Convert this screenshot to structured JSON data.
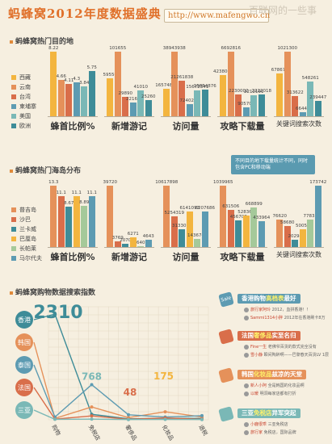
{
  "header": {
    "title": "蚂蜂窝2012年度数据盛典",
    "url": "http://www.mafengwo.cn",
    "watermark": "百联网的一些事"
  },
  "section1": {
    "title": "蚂蜂窝热门目的地",
    "legend": [
      "西藏",
      "云南",
      "台湾",
      "柬埔寨",
      "美国",
      "欧洲"
    ],
    "colors": [
      "#f3b53f",
      "#e5915a",
      "#d96e4a",
      "#5d9bb2",
      "#7ab8b6",
      "#3e8c98"
    ],
    "groups": [
      {
        "label": "蜂首比例%",
        "values": [
          8.22,
          4.66,
          4.11,
          4.3,
          3.84,
          5.75
        ],
        "labels": [
          "8.22",
          "4.66",
          "4.11",
          "4.3",
          "3.84",
          "5.75"
        ]
      },
      {
        "label": "新增游记",
        "values": [
          59550,
          101655,
          29890,
          22160,
          41010,
          25260
        ],
        "labels": [
          "59550",
          "101655",
          "29890",
          "22160",
          "41010",
          "25260"
        ]
      },
      {
        "label": "访问量",
        "values": [
          16574856,
          38943938,
          21261838,
          7240290,
          15672341,
          15854876
        ],
        "labels": [
          "16574856",
          "38943938",
          "21261838",
          "7240290",
          "15672341",
          "15854876"
        ]
      },
      {
        "label": "攻略下载量",
        "values": [
          4238005,
          6692816,
          2230002,
          905702,
          2212191,
          2222018
        ],
        "labels": [
          "4238005",
          "6692816",
          "2230002",
          "905702",
          "2212191",
          "2222018"
        ]
      },
      {
        "label": "关键词搜索次数",
        "values": [
          678670,
          1021300,
          313622,
          66449,
          548261,
          239447
        ],
        "labels": [
          "678670",
          "1021300",
          "313622",
          "66449",
          "548261",
          "239447"
        ],
        "small": true
      }
    ],
    "note": "不同目的地下载量统计不同，同时包含PC和移动端"
  },
  "section2": {
    "title": "蚂蜂窝热门海岛分布",
    "legend": [
      "普吉岛",
      "沙巴",
      "兰卡威",
      "巴厘岛",
      "长帕莱",
      "马尔代夫"
    ],
    "colors": [
      "#e5915a",
      "#d96e4a",
      "#3e8c98",
      "#f3b53f",
      "#a5c99a",
      "#5d9bb2"
    ],
    "groups": [
      {
        "label": "蜂首比例%",
        "values": [
          13.3,
          11.1,
          8.67,
          11.1,
          8.89,
          11.1
        ],
        "labels": [
          "13.3",
          "11.1",
          "8.67",
          "11.1",
          "8.89",
          "11.1"
        ]
      },
      {
        "label": "新增游记",
        "values": [
          39720,
          3769,
          2070,
          6271,
          640,
          4643
        ],
        "labels": [
          "39720",
          "3769",
          "2070",
          "6271",
          "640",
          "4643"
        ]
      },
      {
        "label": "访问量",
        "values": [
          10617898,
          5254319,
          3133071,
          6141093,
          1436748,
          6207686
        ],
        "labels": [
          "10617898",
          "5254319",
          "3133071",
          "6141093",
          "1436748",
          "6207686"
        ]
      },
      {
        "label": "攻略下载量",
        "values": [
          1039965,
          631506,
          456708,
          528361,
          668899,
          433964
        ],
        "labels": [
          "1039965",
          "631506",
          "456708",
          "528361",
          "668899",
          "433964"
        ]
      },
      {
        "label": "关键词搜索次数",
        "values": [
          76620,
          58680,
          20294,
          50058,
          77835,
          173742
        ],
        "labels": [
          "76620",
          "58680",
          "20294",
          "50058",
          "77835",
          "173742"
        ],
        "small": true
      }
    ]
  },
  "section3": {
    "title": "蚂蜂窝购物数据搜索指数",
    "regions": [
      "香港",
      "韩国",
      "泰国",
      "法国",
      "三亚"
    ],
    "region_colors": [
      "#3e8c98",
      "#e5915a",
      "#5d9bb2",
      "#d96e4a",
      "#7ab8b6"
    ],
    "categories": [
      "购物",
      "免税店",
      "奢侈品",
      "化妆品",
      "退税"
    ],
    "annotations": [
      "2310",
      "768",
      "48",
      "175"
    ]
  },
  "chart_data": {
    "type": "line",
    "categories": [
      "购物",
      "免税店",
      "奢侈品",
      "化妆品",
      "退税"
    ],
    "series": [
      {
        "name": "香港",
        "values": [
          2310,
          120,
          20,
          35,
          30
        ]
      },
      {
        "name": "韩国",
        "values": [
          30,
          280,
          48,
          175,
          60
        ]
      },
      {
        "name": "泰国",
        "values": [
          60,
          768,
          110,
          60,
          90
        ]
      },
      {
        "name": "法国",
        "values": [
          15,
          85,
          10,
          40,
          10
        ]
      },
      {
        "name": "三亚",
        "values": [
          10,
          15,
          5,
          8,
          5
        ]
      }
    ]
  },
  "sidebar": [
    {
      "tag": "Sale",
      "title_a": "香港购物",
      "title_b": "高档表",
      "title_c": "最好",
      "color": "#5d9bb2",
      "comments": [
        {
          "name": "旅行家阿玲",
          "text": "2012，血拼香港！！"
        },
        {
          "name": "Sammi1314小胖",
          "text": "2012年在香港刷卡8万"
        }
      ]
    },
    {
      "tag": "",
      "title_a": "法国",
      "title_b": "奢侈品",
      "title_c": "实至名归",
      "color": "#d96e4a",
      "comments": [
        {
          "name": "Fine一生",
          "text": "老佛爷百货的款式完全没有"
        },
        {
          "name": "雪小静",
          "text": "瞬间陶醉啊——巴黎春天百货LV 1层"
        }
      ]
    },
    {
      "tag": "",
      "title_a": "韩国",
      "title_b": "化妆品",
      "title_c": "兹凉的天堂",
      "color": "#e5915a",
      "comments": [
        {
          "name": "新人小阿",
          "text": "全是韩国的化妆品啊"
        },
        {
          "name": "以暖",
          "text": "明洞每家店都有打折"
        }
      ]
    },
    {
      "tag": "",
      "title_a": "三亚",
      "title_b": "免税店",
      "title_c": "异军突起",
      "color": "#7ab8b6",
      "comments": [
        {
          "name": "小鹿很乖",
          "text": "三亚免税店"
        },
        {
          "name": "旅行家",
          "text": "免税店，国际品牌"
        }
      ]
    }
  ]
}
